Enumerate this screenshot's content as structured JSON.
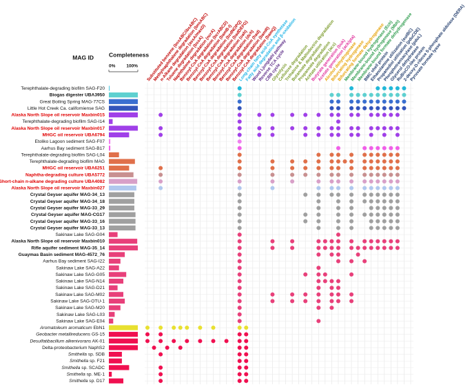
{
  "chart_data": {
    "type": "dotmatrix",
    "row_header": "MAG ID",
    "bar_header": "Completeness",
    "xlim": [
      0,
      100
    ],
    "xticks": [
      {
        "value": 0,
        "label": "0%"
      },
      {
        "value": 100,
        "label": "100%"
      }
    ],
    "grid": true,
    "columns": [
      {
        "label": "Substituted benzene (bssABC/ibsABC)",
        "color": "#c00000"
      },
      {
        "label": "Methylnaphthalene degradation (bnsABC)",
        "color": "#c00000"
      },
      {
        "label": "n-Alkane degradation (assA/masD)",
        "color": "#c00000"
      },
      {
        "label": "Toluene degradation (bssA)",
        "color": "#c00000"
      },
      {
        "label": "Naphthalene degradation (ncrA)",
        "color": "#c00000"
      },
      {
        "label": "Benzoyl-CoA degradation (bcrABCD)",
        "color": "#c00000"
      },
      {
        "label": "Benzoyl-CoA degradation (bamB-I)",
        "color": "#c00000"
      },
      {
        "label": "Benzoyl-CoA degradation (bzdNOPQ)",
        "color": "#c00000"
      },
      {
        "label": "Benzoyl-CoA degradation (badDEFG)",
        "color": "#c00000"
      },
      {
        "label": "Benzoyl-CoA degradation (oah)",
        "color": "#c00000"
      },
      {
        "label": "Benzoyl-CoA degradation (dch)",
        "color": "#c00000"
      },
      {
        "label": "Benzoyl-CoA degradation (had)",
        "color": "#c00000"
      },
      {
        "label": "Benzoyl-CoA degradation (bamR)",
        "color": "#c00000"
      },
      {
        "label": "Benzoyl-CoA degradation (bamQ)",
        "color": "#c00000"
      },
      {
        "label": "Long-chain fatty acid-CoA synthetase",
        "color": "#1fb3e6"
      },
      {
        "label": "Fatty acid degradation and β-oxidation",
        "color": "#1fb3e6"
      },
      {
        "label": "Wood Ljungdahl pathway",
        "color": "#5b2a86"
      },
      {
        "label": "Reverse TCA cycle",
        "color": "#5b2a86"
      },
      {
        "label": "CBB cycle",
        "color": "#5b2a86"
      },
      {
        "label": "Glycolysis",
        "color": "#7a9a2a"
      },
      {
        "label": "Cellulose degradation",
        "color": "#7a9a2a"
      },
      {
        "label": "Trehalose & Maltodextrin degradation",
        "color": "#7a9a2a"
      },
      {
        "label": "Butanoate degradation",
        "color": "#7a9a2a"
      },
      {
        "label": "Propanoate degradation",
        "color": "#7a9a2a"
      },
      {
        "label": "Acetate utilization (acs)",
        "color": "#7a9a2a"
      },
      {
        "label": "Butyrate generation (buk)",
        "color": "#e0309a"
      },
      {
        "label": "Acetate generation (ack/pta)",
        "color": "#e0309a"
      },
      {
        "label": "Alcohol dehydrogenase",
        "color": "#e6a000"
      },
      {
        "label": "Bifurcating hydrogenase",
        "color": "#e6a000"
      },
      {
        "label": "Bifurcating formate dehydrogenase",
        "color": "#e6a000"
      },
      {
        "label": "Membrane-bound hydrogenase (Ech)",
        "color": "#2a9a4a"
      },
      {
        "label": "Membrane-bound hydrogenase (Mbh)",
        "color": "#2a9a4a"
      },
      {
        "label": "Membrane-bound formate dehydrogenase",
        "color": "#2a9a4a"
      },
      {
        "label": "BMC shell protein",
        "color": "#1f3a6b"
      },
      {
        "label": "Ethanolamine utilization (eutBC)",
        "color": "#1f3a6b"
      },
      {
        "label": "Propanediol utilization (pduCDE)",
        "color": "#1f3a6b"
      },
      {
        "label": "Phosphotransacylase (pduL)",
        "color": "#1f3a6b"
      },
      {
        "label": "Glycerol dehydratase",
        "color": "#1f3a6b"
      },
      {
        "label": "RuBisCO-like protein",
        "color": "#1f3a6b"
      },
      {
        "label": "2-deoxy-D-ribose 5-phosphate aldolase (DERA)",
        "color": "#1f3a6b"
      },
      {
        "label": "Pyruvate formate lyase",
        "color": "#1f3a6b"
      }
    ],
    "rows": [
      {
        "label": "Terephthalate-degrading biofilm SAG-F20",
        "style": "normal",
        "color": "#22b8d8",
        "completeness": 2,
        "dots": [
          14,
          31,
          35,
          36,
          37,
          38,
          39
        ]
      },
      {
        "label": "Biogas digester UBA3950",
        "style": "bold",
        "color": "#5ed0d0",
        "completeness": 100,
        "dots": [
          14,
          28,
          29,
          31,
          32,
          33,
          34,
          35,
          36,
          37,
          38,
          39
        ]
      },
      {
        "label": "Great Boiling Spring MAG-77CS",
        "style": "normal",
        "color": "#3a6fd0",
        "completeness": 100,
        "dots": [
          14,
          28,
          29,
          31,
          32,
          33,
          34,
          35,
          36,
          37,
          38,
          39
        ]
      },
      {
        "label": "Little Hot Creek Ca. californiense SAG",
        "style": "normal",
        "color": "#3355bb",
        "completeness": 100,
        "dots": [
          14,
          28,
          29,
          31,
          32,
          33,
          34,
          35,
          36,
          37,
          38,
          39
        ]
      },
      {
        "label": "Alaska North Slope oil reservoir Maxbin015",
        "style": "red",
        "color": "#a040e8",
        "completeness": 100,
        "dots": [
          2,
          14,
          17,
          19,
          22,
          24,
          26,
          28,
          29,
          31,
          32,
          34,
          35,
          36,
          37,
          38
        ]
      },
      {
        "label": "Terephthalate-degrading biofilm SAG-I14",
        "style": "normal",
        "color": "#a040e8",
        "completeness": 13,
        "dots": [
          14,
          29
        ]
      },
      {
        "label": "Alaska North Slope oil reservoir Maxbin017",
        "style": "red",
        "color": "#a040e8",
        "completeness": 100,
        "dots": [
          2,
          14,
          17,
          19,
          22,
          24,
          26,
          28,
          29,
          31,
          32,
          34,
          35,
          36,
          37,
          38
        ]
      },
      {
        "label": "MHGC oil reservoir UBA6794",
        "style": "red",
        "color": "#a040e8",
        "completeness": 70,
        "dots": [
          2,
          14,
          17,
          19,
          24,
          26,
          28,
          29,
          31,
          32,
          34,
          36,
          38
        ]
      },
      {
        "label": "Etoliko Lagoon sediment SAG-F07",
        "style": "normal",
        "color": "#f080f0",
        "completeness": 5,
        "dots": [
          14
        ]
      },
      {
        "label": "Aarhus Bay sediment SAG-B17",
        "style": "normal",
        "color": "#f060e8",
        "completeness": 5,
        "dots": [
          14,
          29,
          33,
          34,
          35,
          36,
          37,
          38
        ]
      },
      {
        "label": "Terephthalate-degrading biofilm SAG-L04",
        "style": "normal",
        "color": "#e0704a",
        "completeness": 35,
        "dots": [
          14,
          26,
          28,
          29,
          31,
          33,
          34,
          35,
          36,
          37,
          38
        ]
      },
      {
        "label": "Terephthalate-degrading biofilm MAG",
        "style": "normal",
        "color": "#e0704a",
        "completeness": 90,
        "dots": [
          14,
          19,
          22,
          24,
          26,
          28,
          29,
          30,
          31,
          33,
          34,
          35,
          36,
          37,
          38
        ]
      },
      {
        "label": "MHGC oil reservoir UBA6251",
        "style": "red",
        "color": "#e0704a",
        "completeness": 70,
        "dots": [
          2,
          14,
          19,
          22,
          24,
          26,
          28,
          29,
          31,
          33,
          34,
          35,
          36,
          37,
          38
        ]
      },
      {
        "label": "Naphtha-degrading culture UBA5772",
        "style": "red",
        "color": "#c89090",
        "completeness": 85,
        "dots": [
          2,
          14,
          19,
          22,
          24,
          26,
          28,
          29,
          31,
          33,
          34,
          35,
          36,
          37,
          38
        ]
      },
      {
        "label": "Short-chain n-alkane degrading culture UBA4082",
        "style": "red",
        "color": "#d8a0c8",
        "completeness": 98,
        "dots": [
          2,
          14,
          19,
          22,
          26,
          28,
          29,
          31,
          33,
          34,
          35,
          36,
          37,
          38
        ]
      },
      {
        "label": "Alaska North Slope oil reservoir Maxbin027",
        "style": "red",
        "color": "#b0c8ee",
        "completeness": 95,
        "dots": [
          2,
          14,
          19,
          26,
          28,
          29,
          31,
          33,
          34,
          35,
          36,
          37,
          38
        ]
      },
      {
        "label": "Crystal Geyser aquifer MAG-34_13",
        "style": "bold",
        "color": "#a0a0a0",
        "completeness": 88,
        "dots": [
          14,
          24,
          26,
          28,
          29,
          31,
          33,
          34,
          35,
          36,
          37,
          38
        ]
      },
      {
        "label": "Crystal Geyser aquifer MAG-34_18",
        "style": "bold",
        "color": "#a0a0a0",
        "completeness": 88,
        "dots": [
          14,
          26,
          29,
          31,
          33,
          34,
          35,
          36,
          37,
          38
        ]
      },
      {
        "label": "Crystal Geyser aquifer MAG-33_29",
        "style": "bold",
        "color": "#a0a0a0",
        "completeness": 88,
        "dots": [
          14,
          26,
          29,
          31,
          34,
          35,
          36,
          37,
          38
        ]
      },
      {
        "label": "Crystal Geyser aquifer MAG-CG17",
        "style": "bold",
        "color": "#a0a0a0",
        "completeness": 92,
        "dots": [
          14,
          24,
          26,
          29,
          31,
          33,
          34,
          35,
          36,
          37,
          38
        ]
      },
      {
        "label": "Crystal Geyser aquifer MAG-33_16",
        "style": "bold",
        "color": "#a0a0a0",
        "completeness": 92,
        "dots": [
          14,
          24,
          26,
          29,
          31,
          34,
          35,
          36,
          37,
          38
        ]
      },
      {
        "label": "Crystal Geyser aquifer MAG-33_13",
        "style": "bold",
        "color": "#a0a0a0",
        "completeness": 92,
        "dots": [
          14,
          26,
          29,
          31,
          34,
          35,
          36,
          37,
          38
        ]
      },
      {
        "label": "Sakinaw Lake SAG-G04",
        "style": "normal",
        "color": "#e8407a",
        "completeness": 30,
        "dots": [
          14,
          29
        ]
      },
      {
        "label": "Alaska North Slope oil reservoir Maxbin010",
        "style": "bold",
        "color": "#e8407a",
        "completeness": 98,
        "dots": [
          14,
          19,
          22,
          26,
          27,
          28,
          29,
          31,
          33,
          34,
          35,
          36,
          37,
          38
        ]
      },
      {
        "label": "Rifle aquifer sediment MAG-35_14",
        "style": "bold",
        "color": "#e8407a",
        "completeness": 100,
        "dots": [
          14,
          19,
          22,
          26,
          27,
          28,
          29,
          31,
          32,
          33,
          34,
          35,
          36,
          37,
          38
        ]
      },
      {
        "label": "Guaymas Basin sediment MAG-4572_76",
        "style": "bold",
        "color": "#e8407a",
        "completeness": 55,
        "dots": [
          14,
          26,
          28,
          29,
          32
        ]
      },
      {
        "label": "Aarhus Bay sediment SAG-I22",
        "style": "normal",
        "color": "#e8407a",
        "completeness": 40,
        "dots": [
          14,
          29,
          31,
          33
        ]
      },
      {
        "label": "Sakinaw Lake SAG-A22",
        "style": "normal",
        "color": "#e8407a",
        "completeness": 35,
        "dots": [
          14,
          26
        ]
      },
      {
        "label": "Sakinaw Lake SAG-G05",
        "style": "normal",
        "color": "#e8407a",
        "completeness": 60,
        "dots": [
          14,
          24,
          26,
          27,
          31
        ]
      },
      {
        "label": "Sakinaw Lake SAG-N14",
        "style": "normal",
        "color": "#e8407a",
        "completeness": 50,
        "dots": [
          14,
          26,
          27,
          28,
          29
        ]
      },
      {
        "label": "Sakinaw Lake SAG-D21",
        "style": "normal",
        "color": "#e8407a",
        "completeness": 30,
        "dots": [
          14,
          26,
          28,
          29
        ]
      },
      {
        "label": "Sakinaw Lake SAG-M02",
        "style": "normal",
        "color": "#e8407a",
        "completeness": 50,
        "dots": [
          14,
          19,
          22,
          24,
          26,
          28,
          29,
          31
        ]
      },
      {
        "label": "Sakinaw Lake SAG-OTU-1",
        "style": "normal",
        "color": "#e8407a",
        "completeness": 55,
        "dots": [
          14,
          19,
          22,
          24,
          26,
          28,
          29,
          31
        ]
      },
      {
        "label": "Sakinaw Lake SAG-M20",
        "style": "normal",
        "color": "#e8407a",
        "completeness": 40,
        "dots": [
          14,
          26,
          28
        ]
      },
      {
        "label": "Sakinaw Lake SAG-L03",
        "style": "normal",
        "color": "#e8407a",
        "completeness": 20,
        "dots": [
          14
        ]
      },
      {
        "label": "Sakinaw Lake SAG-E04",
        "style": "normal",
        "color": "#e8407a",
        "completeness": 15,
        "dots": [
          14,
          26
        ]
      },
      {
        "italic": "Aromatoleum aromaticum",
        "label": "EbN1",
        "style": "normal",
        "color": "#e8e030",
        "completeness": 100,
        "dots": [
          0,
          2,
          4,
          5,
          6,
          8,
          10,
          14,
          15
        ]
      },
      {
        "italic": "Geobacter metallireducens",
        "label": "GS-15",
        "style": "normal",
        "color": "#f01050",
        "completeness": 100,
        "dots": [
          0,
          2,
          14,
          15
        ]
      },
      {
        "italic": "Desulfatibacillum alkenivorans",
        "label": "AK-01",
        "style": "normal",
        "color": "#f01050",
        "completeness": 100,
        "dots": [
          0,
          2,
          4,
          6,
          8,
          10,
          12,
          14,
          15
        ]
      },
      {
        "label": "Delta-proteobacterium NaphS2",
        "style": "normal",
        "color": "#f01050",
        "completeness": 100,
        "dots": [
          1,
          3,
          5,
          14,
          15
        ]
      },
      {
        "italic": "Smithella",
        "label": "sp. SDB",
        "style": "normal",
        "color": "#f01050",
        "completeness": 45,
        "dots": [
          2,
          14,
          15
        ]
      },
      {
        "italic": "Smithella",
        "label": "sp. F21",
        "style": "normal",
        "color": "#f01050",
        "completeness": 45,
        "dots": [
          14,
          15
        ]
      },
      {
        "italic": "Smithella",
        "label": "sp. SCADC",
        "style": "normal",
        "color": "#f01050",
        "completeness": 70,
        "dots": [
          2,
          14,
          15
        ]
      },
      {
        "italic": "Smithella",
        "label": "sp. ME-1",
        "style": "normal",
        "color": "#f01050",
        "completeness": 10,
        "dots": [
          2,
          14,
          15
        ]
      },
      {
        "italic": "Smithella",
        "label": "sp. D17",
        "style": "normal",
        "color": "#f01050",
        "completeness": 50,
        "dots": [
          2,
          14,
          15
        ]
      }
    ]
  }
}
